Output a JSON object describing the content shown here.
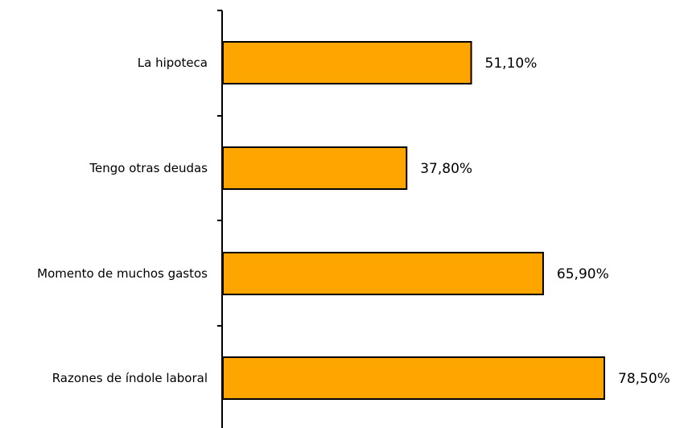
{
  "chart_data": {
    "type": "bar",
    "orientation": "horizontal",
    "categories": [
      "La hipoteca",
      "Tengo otras deudas",
      "Momento de muchos gastos",
      "Razones de índole laboral"
    ],
    "values": [
      51.1,
      37.8,
      65.9,
      78.5
    ],
    "value_labels": [
      "51,10%",
      "37,80%",
      "65,90%",
      "78,50%"
    ],
    "title": "",
    "xlabel": "",
    "ylabel": "",
    "xlim": [
      0,
      78.5
    ],
    "grid": false,
    "legend": "none",
    "bar_color": "#FFA500",
    "bar_border_color": "#000000",
    "axis_color": "#000000"
  }
}
